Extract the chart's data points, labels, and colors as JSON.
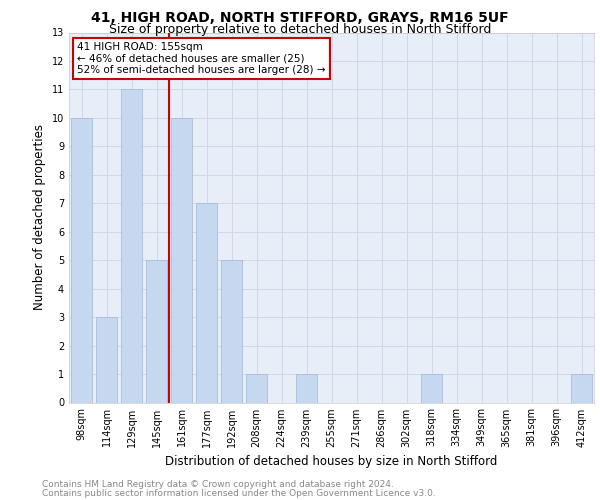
{
  "title": "41, HIGH ROAD, NORTH STIFFORD, GRAYS, RM16 5UF",
  "subtitle": "Size of property relative to detached houses in North Stifford",
  "xlabel": "Distribution of detached houses by size in North Stifford",
  "ylabel": "Number of detached properties",
  "footnote1": "Contains HM Land Registry data © Crown copyright and database right 2024.",
  "footnote2": "Contains public sector information licensed under the Open Government Licence v3.0.",
  "categories": [
    "98sqm",
    "114sqm",
    "129sqm",
    "145sqm",
    "161sqm",
    "177sqm",
    "192sqm",
    "208sqm",
    "224sqm",
    "239sqm",
    "255sqm",
    "271sqm",
    "286sqm",
    "302sqm",
    "318sqm",
    "334sqm",
    "349sqm",
    "365sqm",
    "381sqm",
    "396sqm",
    "412sqm"
  ],
  "values": [
    10,
    3,
    11,
    5,
    10,
    7,
    5,
    1,
    0,
    1,
    0,
    0,
    0,
    0,
    1,
    0,
    0,
    0,
    0,
    0,
    1
  ],
  "bar_color": "#c5d8f0",
  "bar_edge_color": "#a0b8d8",
  "highlight_line_color": "#cc0000",
  "annotation_line1": "41 HIGH ROAD: 155sqm",
  "annotation_line2": "← 46% of detached houses are smaller (25)",
  "annotation_line3": "52% of semi-detached houses are larger (28) →",
  "annotation_box_color": "#cc0000",
  "ylim": [
    0,
    13
  ],
  "yticks": [
    0,
    1,
    2,
    3,
    4,
    5,
    6,
    7,
    8,
    9,
    10,
    11,
    12,
    13
  ],
  "grid_color": "#d0d8e8",
  "plot_bg_color": "#e8eef8",
  "title_fontsize": 10,
  "subtitle_fontsize": 9,
  "xlabel_fontsize": 8.5,
  "ylabel_fontsize": 8.5,
  "tick_fontsize": 7,
  "annotation_fontsize": 7.5,
  "footnote_fontsize": 6.5
}
